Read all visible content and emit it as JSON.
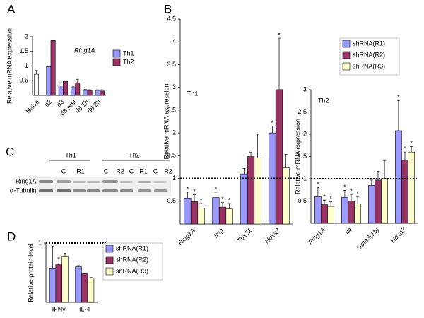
{
  "panel_labels": [
    "A",
    "B",
    "C",
    "D"
  ],
  "chart_data": [
    {
      "type": "bar",
      "annotation": "Ring1A",
      "y_label": "Relative mRNA expression",
      "categories": [
        "Naive",
        "d2",
        "d8",
        "d8 rest",
        "d8 1h",
        "d8 2h"
      ],
      "series": [
        {
          "name": "Th1",
          "color": "#9999ff",
          "point_colors": [
            "#ffffff",
            "#9999ff",
            "#9999ff",
            "#9999ff",
            "#9999ff",
            "#9999ff"
          ],
          "values": [
            0.72,
            0.98,
            0.33,
            0.27,
            0.17,
            0.17
          ],
          "errors": [
            0.13,
            0.01,
            0.1,
            0.04,
            0.03,
            0.02
          ]
        },
        {
          "name": "Th2",
          "color": "#993366",
          "values": [
            null,
            1.87,
            0.48,
            0.43,
            0.17,
            0.15
          ],
          "errors": [
            null,
            0.01,
            0.02,
            0.12,
            0.02,
            0.04
          ]
        }
      ],
      "ylim": [
        0,
        2
      ],
      "yticks": [
        0.5,
        1,
        1.5,
        2
      ],
      "legend": true
    },
    {
      "type": "bar",
      "annotation": "Th1",
      "y_label": "Relative mRNA expression",
      "categories": [
        "Ring1A",
        "Ifng",
        "Tbx21",
        "Hoxa7"
      ],
      "series": [
        {
          "name": "shRNA(R1)",
          "color": "#9999ff",
          "values": [
            0.57,
            0.58,
            1.1,
            2.0
          ],
          "errors": [
            0.13,
            0.12,
            0.12,
            0.15
          ],
          "stars": [
            "*",
            "*",
            null,
            "*"
          ]
        },
        {
          "name": "shRNA(R2)",
          "color": "#993366",
          "values": [
            0.49,
            0.37,
            1.48,
            2.95
          ],
          "errors": [
            0.15,
            0.1,
            0.1,
            1.13
          ],
          "stars": [
            "*",
            "*",
            null,
            "*"
          ]
        },
        {
          "name": "shRNA(R3)",
          "color": "#ffffcc",
          "values": [
            0.35,
            0.33,
            1.45,
            1.23
          ],
          "errors": [
            0.1,
            0.12,
            0.52,
            0.3
          ],
          "stars": [
            "*",
            "*",
            null,
            null
          ]
        }
      ],
      "ylim": [
        0,
        4.5
      ],
      "yticks": [
        0.5,
        1,
        1.5,
        2,
        2.5,
        3,
        3.5,
        4,
        4.5
      ],
      "reference_line": 1,
      "legend": true
    },
    {
      "type": "bar",
      "annotation": "Th2",
      "y_label": "Relative mRNA expression",
      "categories": [
        "Ring1A",
        "Il4",
        "Gata3(1b)",
        "Hoxa7"
      ],
      "series": [
        {
          "name": "shRNA(R1)",
          "color": "#9999ff",
          "values": [
            0.6,
            0.58,
            0.85,
            2.08
          ],
          "errors": [
            0.2,
            0.16,
            0.12,
            0.68
          ],
          "stars": [
            "*",
            "*",
            null,
            "*"
          ]
        },
        {
          "name": "shRNA(R2)",
          "color": "#993366",
          "values": [
            0.42,
            0.5,
            0.97,
            1.42
          ],
          "errors": [
            0.1,
            0.15,
            0.2,
            0.18
          ],
          "stars": [
            "*",
            "*",
            null,
            "*"
          ]
        },
        {
          "name": "shRNA(R3)",
          "color": "#ffffcc",
          "values": [
            0.38,
            0.44,
            1.0,
            1.6
          ],
          "errors": [
            0.1,
            0.15,
            0.4,
            0.12
          ],
          "stars": [
            "*",
            "*",
            null,
            "*"
          ]
        }
      ],
      "ylim": [
        0,
        3
      ],
      "yticks": [
        0.5,
        1,
        1.5,
        2,
        2.5,
        3
      ],
      "reference_line": 1,
      "legend": false
    },
    {
      "type": "bar",
      "y_label": "Relative protein level",
      "categories": [
        "IFNγ",
        "IL-4"
      ],
      "series": [
        {
          "name": "shRNA(R1)",
          "color": "#9999ff",
          "values": [
            0.58,
            0.6
          ],
          "errors": [
            0.37,
            0.02
          ]
        },
        {
          "name": "shRNA(R2)",
          "color": "#993366",
          "values": [
            0.65,
            0.48
          ],
          "errors": [
            0.1,
            0.01
          ]
        },
        {
          "name": "shRNA(R3)",
          "color": "#ffffcc",
          "values": [
            0.78,
            0.41
          ],
          "errors": [
            0.05,
            0.01
          ]
        }
      ],
      "ylim": [
        0,
        1
      ],
      "yticks": [
        1
      ],
      "reference_line": 1,
      "legend": true
    }
  ],
  "blot": {
    "groups": [
      "Th1",
      "Th2"
    ],
    "lanes": [
      "C",
      "R1",
      "C",
      "R2",
      "C",
      "R1",
      "C",
      "R2"
    ],
    "rows": [
      "Ring1A",
      "α-Tubulin"
    ]
  }
}
